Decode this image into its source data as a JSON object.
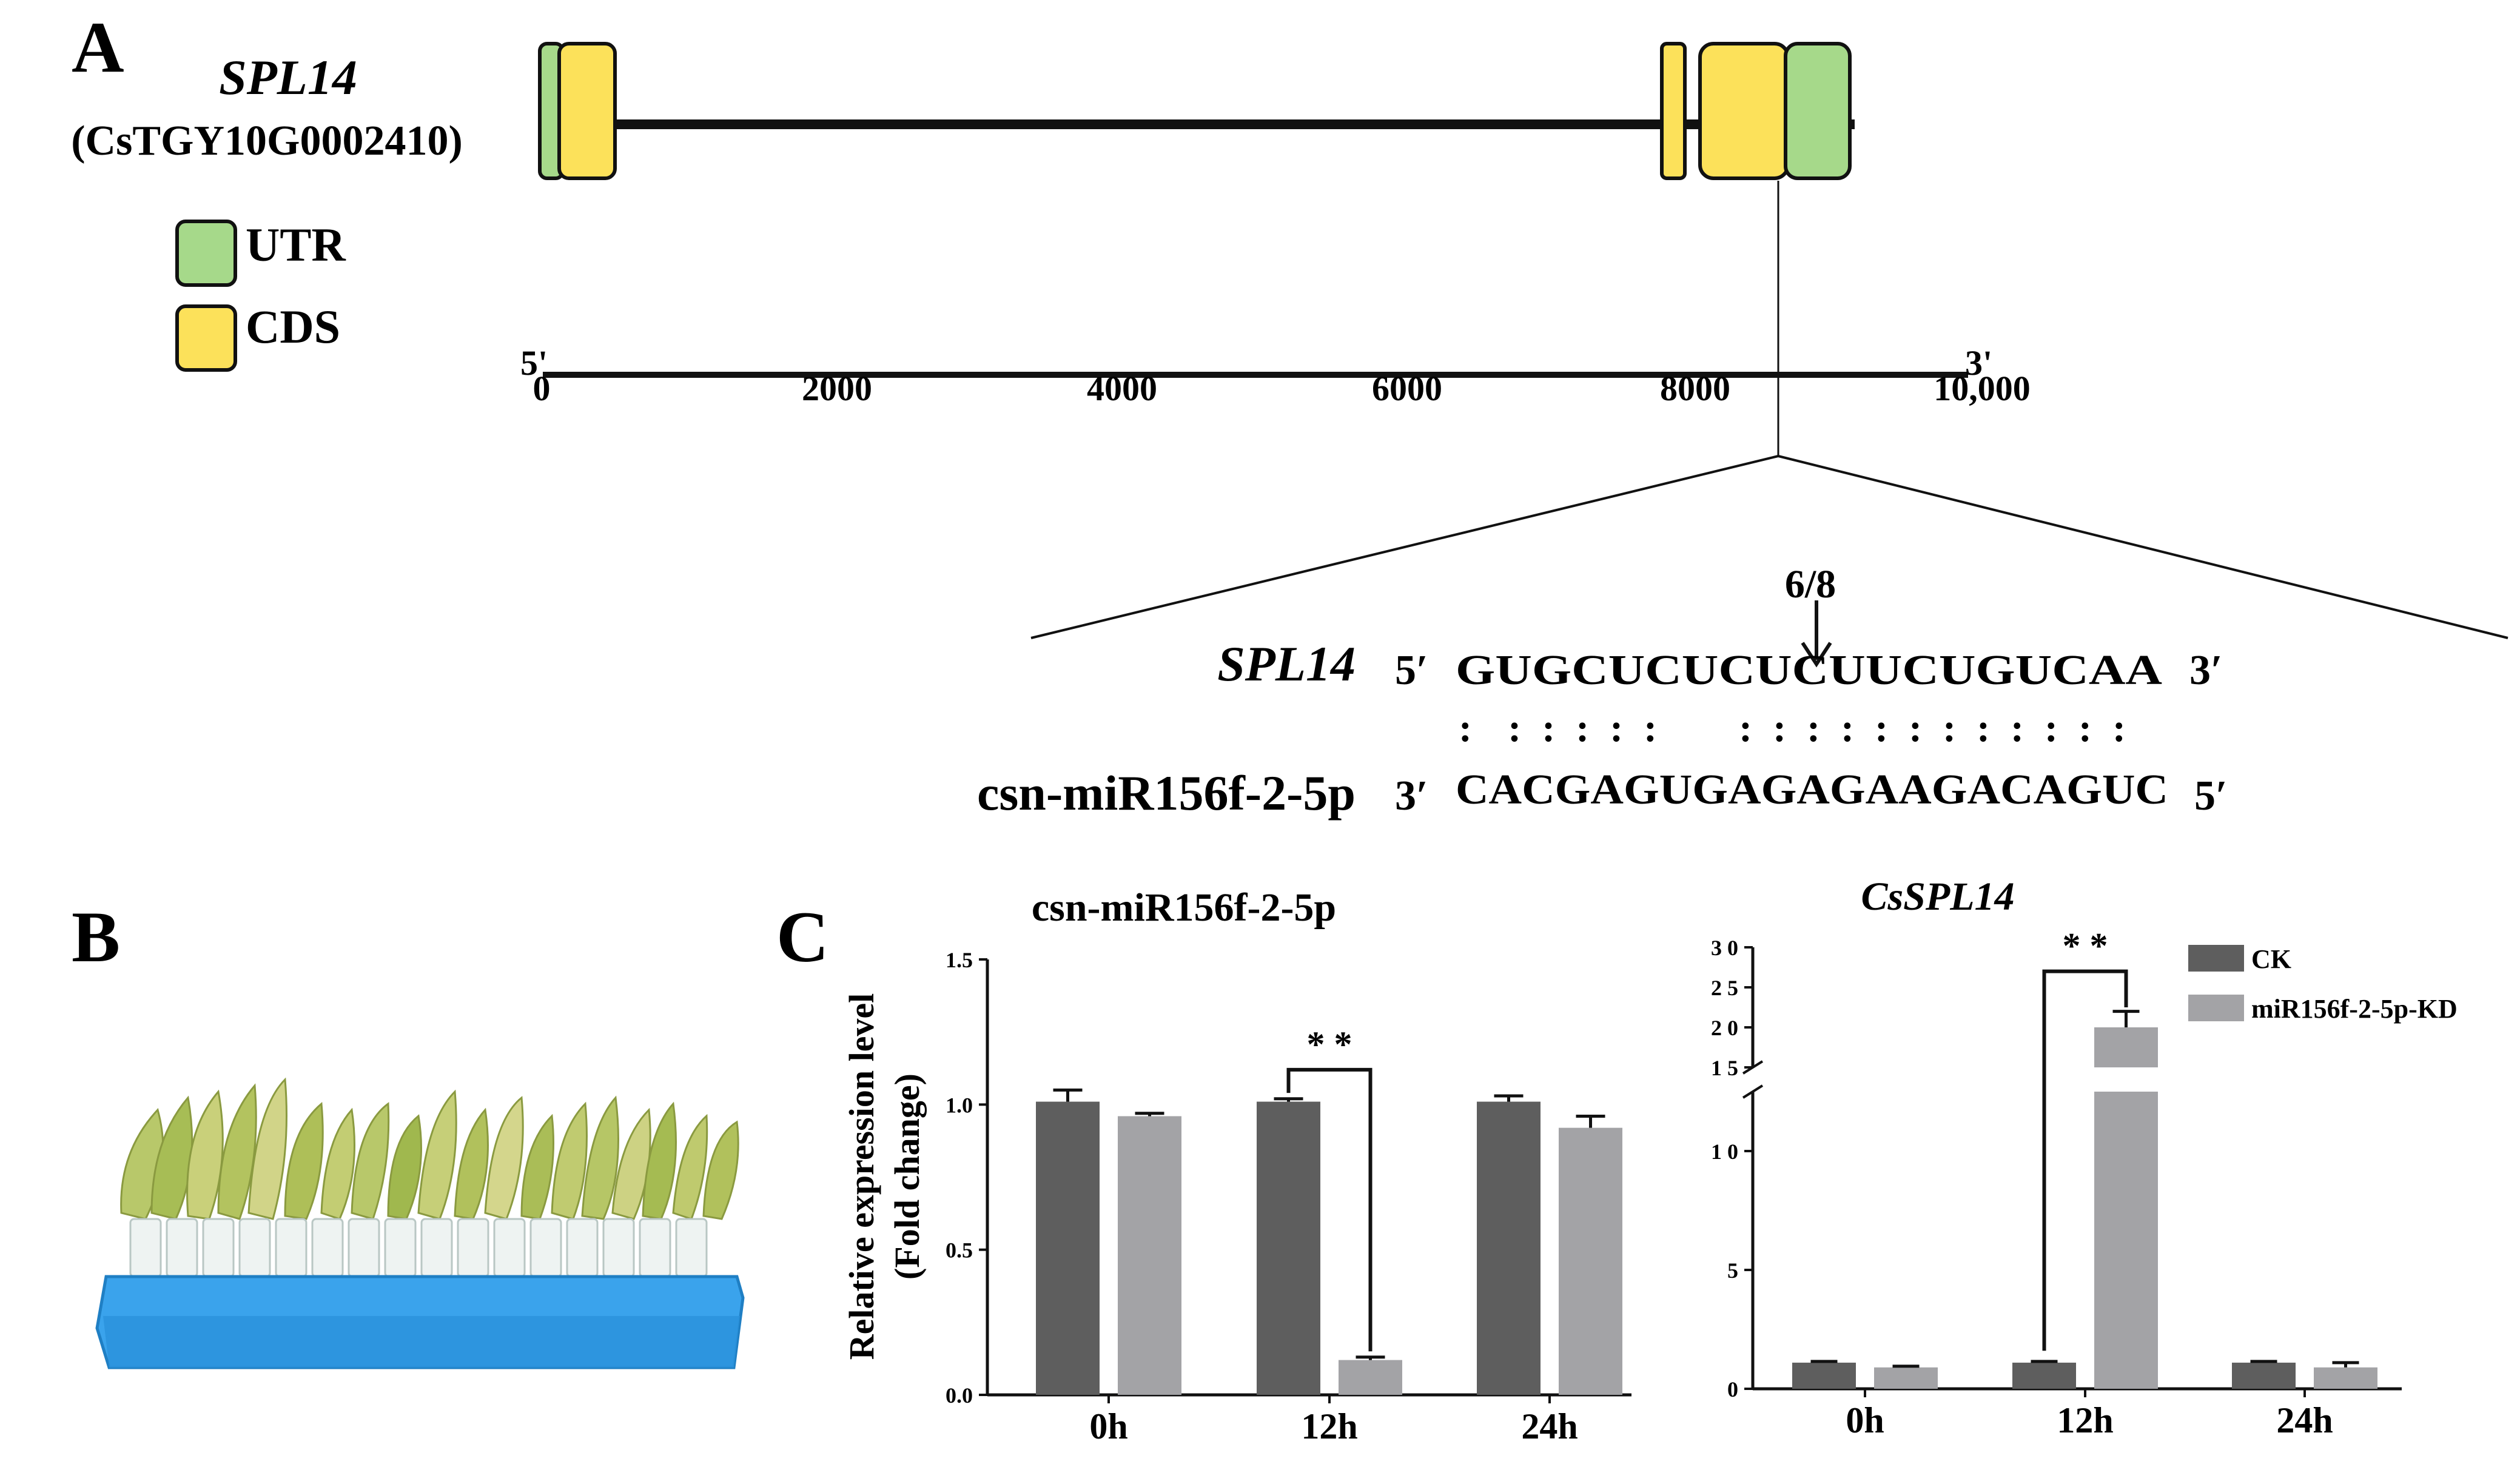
{
  "panels": {
    "a": "A",
    "b": "B",
    "c": "C"
  },
  "gene": {
    "name": "SPL14",
    "id": "(CsTGY10G0002410)",
    "legend": [
      {
        "label": "UTR",
        "color": "#a6d98a"
      },
      {
        "label": "CDS",
        "color": "#fce15a"
      }
    ],
    "scale": {
      "end5": "5'",
      "end3": "3'",
      "ticks": [
        "0",
        "2000",
        "4000",
        "6000",
        "8000",
        "10,000"
      ]
    },
    "site_ratio": "6/8"
  },
  "alignment": {
    "target_name": "SPL14",
    "target_end_left": "5′",
    "target_seq": "GUGCUCUCUCUUCUGUCAA",
    "target_end_right": "3′",
    "pairing": ":  : : : : :     : : : : : : : : : : : :",
    "mirna_name": "csn-miR156f-2-5p",
    "mirna_end_left": "3′",
    "mirna_seq": "CACGAGUGAGAGAAGACAGUC",
    "mirna_end_right": "5′"
  },
  "colors": {
    "ck": "#5e5e5e",
    "kd": "#a3a3a6",
    "utr": "#a6d98a",
    "cds": "#fce15a",
    "tray": "#3aa3ec"
  },
  "chart_data": [
    {
      "type": "bar",
      "title": "csn-miR156f-2-5p",
      "ylabel": "Relative expression level\n(Fold change)",
      "categories": [
        "0h",
        "12h",
        "24h"
      ],
      "ylim": [
        0,
        1.5
      ],
      "yticks": [
        "0.0",
        "0.5",
        "1.0",
        "1.5"
      ],
      "series": [
        {
          "name": "CK",
          "values": [
            1.01,
            1.01,
            1.01
          ],
          "errors": [
            0.04,
            0.01,
            0.02
          ]
        },
        {
          "name": "miR156f-2-5p-KD",
          "values": [
            0.96,
            0.12,
            0.92
          ],
          "errors": [
            0.01,
            0.01,
            0.04
          ]
        }
      ],
      "significance": {
        "category": "12h",
        "label": "* *"
      }
    },
    {
      "type": "bar",
      "title": "CsSPL14",
      "categories": [
        "0h",
        "12h",
        "24h"
      ],
      "ylim": [
        0,
        30
      ],
      "axis_break": [
        12.5,
        15
      ],
      "yticks_lower": [
        "0",
        "5",
        "1 0"
      ],
      "yticks_upper": [
        "1 5",
        "2 0",
        "2 5",
        "3 0"
      ],
      "series": [
        {
          "name": "CK",
          "values": [
            1.1,
            1.1,
            1.1
          ],
          "errors": [
            0.05,
            0.05,
            0.05
          ]
        },
        {
          "name": "miR156f-2-5p-KD",
          "values": [
            0.9,
            20,
            0.9
          ],
          "errors": [
            0.05,
            2.0,
            0.2
          ]
        }
      ],
      "significance": {
        "category": "12h",
        "label": "* *"
      },
      "legend": [
        "CK",
        "miR156f-2-5p-KD"
      ]
    }
  ]
}
